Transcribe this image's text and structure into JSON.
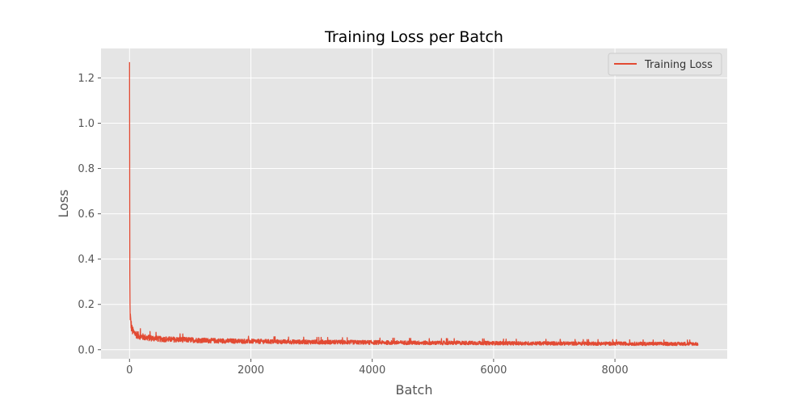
{
  "chart_data": {
    "type": "line",
    "title": "Training Loss per Batch",
    "xlabel": "Batch",
    "ylabel": "Loss",
    "xlim": [
      -470,
      9850
    ],
    "ylim": [
      -0.04,
      1.33
    ],
    "xticks": [
      0,
      2000,
      4000,
      6000,
      8000
    ],
    "yticks": [
      0.0,
      0.2,
      0.4,
      0.6,
      0.8,
      1.0,
      1.2
    ],
    "grid": true,
    "legend_position": "top-right",
    "style": {
      "background": "#e5e5e5",
      "grid_color": "#ffffff",
      "series_color": "#e24a33"
    },
    "series": [
      {
        "name": "Training Loss",
        "color": "#e24a33",
        "x": [
          0,
          5,
          10,
          20,
          40,
          60,
          100,
          150,
          200,
          300,
          400,
          500,
          700,
          1000,
          1200,
          1500,
          2000,
          2500,
          3000,
          3500,
          4000,
          4500,
          5000,
          5500,
          6000,
          6500,
          7000,
          7500,
          8000,
          8500,
          9000,
          9370
        ],
        "y": [
          1.27,
          0.22,
          0.16,
          0.12,
          0.09,
          0.078,
          0.07,
          0.062,
          0.058,
          0.052,
          0.05,
          0.047,
          0.045,
          0.043,
          0.041,
          0.039,
          0.037,
          0.035,
          0.034,
          0.033,
          0.032,
          0.031,
          0.03,
          0.03,
          0.029,
          0.028,
          0.028,
          0.027,
          0.027,
          0.026,
          0.026,
          0.026
        ]
      }
    ]
  }
}
